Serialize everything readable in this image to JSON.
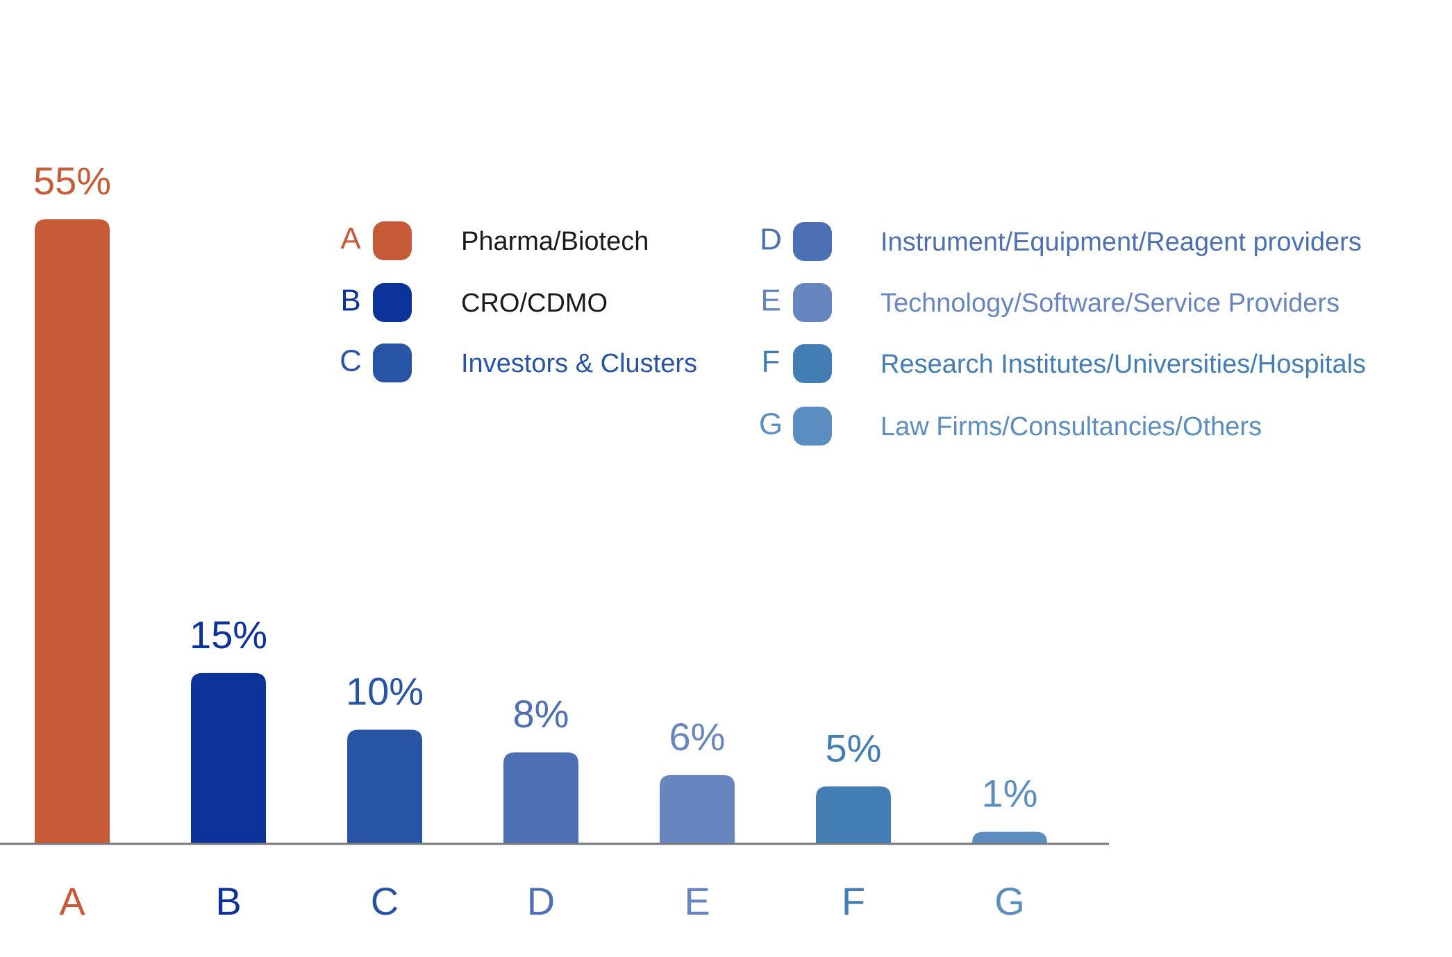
{
  "chart_data": {
    "type": "bar",
    "categories": [
      "A",
      "B",
      "C",
      "D",
      "E",
      "F",
      "G"
    ],
    "values": [
      55,
      15,
      10,
      8,
      6,
      5,
      1
    ],
    "value_labels": [
      "55%",
      "15%",
      "10%",
      "8%",
      "6%",
      "5%",
      "1%"
    ],
    "colors": [
      "#c75a37",
      "#0c339a",
      "#2754a5",
      "#4c70b3",
      "#6786bf",
      "#427db4",
      "#5b8dc1"
    ],
    "legend": [
      {
        "letter": "A",
        "label": "Pharma/Biotech",
        "color": "#c75a37",
        "text_color": "#1a1a1a"
      },
      {
        "letter": "B",
        "label": "CRO/CDMO",
        "color": "#0c339a",
        "text_color": "#1a1a1a"
      },
      {
        "letter": "C",
        "label": "Investors & Clusters",
        "color": "#2754a5",
        "text_color": "#2754a5"
      },
      {
        "letter": "D",
        "label": "Instrument/Equipment/Reagent providers",
        "color": "#4c70b3",
        "text_color": "#4c70b3"
      },
      {
        "letter": "E",
        "label": "Technology/Software/Service Providers",
        "color": "#6786bf",
        "text_color": "#6786bf"
      },
      {
        "letter": "F",
        "label": "Research Institutes/Universities/Hospitals",
        "color": "#427db4",
        "text_color": "#427db4"
      },
      {
        "letter": "G",
        "label": "Law Firms/Consultancies/Others",
        "color": "#5b8dc1",
        "text_color": "#5b8dc1"
      }
    ],
    "title": "",
    "xlabel": "",
    "ylabel": "",
    "ylim": [
      0,
      55
    ],
    "grid": false,
    "legend_position": "top-right",
    "axis_color": "#7a7a7a"
  }
}
